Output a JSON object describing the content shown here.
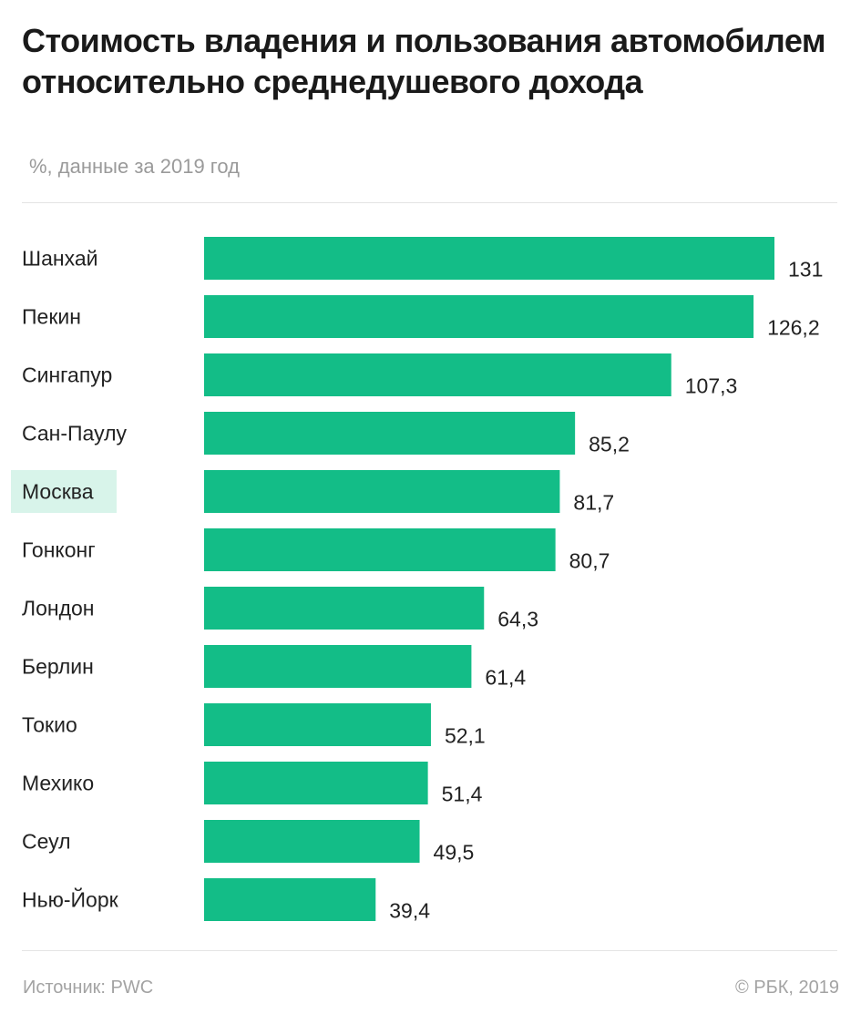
{
  "header": {
    "title": "Стоимость владения и пользования автомобилем относительно среднедушевого дохода",
    "subtitle": "%, данные за 2019 год"
  },
  "footer": {
    "source": "Источник: PWC",
    "copyright": "© РБК, 2019"
  },
  "colors": {
    "bar": "#13bd87",
    "highlight_background": "#d8f4ea"
  },
  "chart_data": {
    "type": "bar",
    "orientation": "horizontal",
    "categories": [
      "Шанхай",
      "Пекин",
      "Сингапур",
      "Сан-Паулу",
      "Москва",
      "Гонконг",
      "Лондон",
      "Берлин",
      "Токио",
      "Мехико",
      "Сеул",
      "Нью-Йорк"
    ],
    "values": [
      131,
      126.2,
      107.3,
      85.2,
      81.7,
      80.7,
      64.3,
      61.4,
      52.1,
      51.4,
      49.5,
      39.4
    ],
    "value_labels": [
      "131",
      "126,2",
      "107,3",
      "85,2",
      "81,7",
      "80,7",
      "64,3",
      "61,4",
      "52,1",
      "51,4",
      "49,5",
      "39,4"
    ],
    "highlighted_category": "Москва",
    "xlim": [
      0,
      131
    ],
    "grid": false,
    "legend": "none"
  }
}
